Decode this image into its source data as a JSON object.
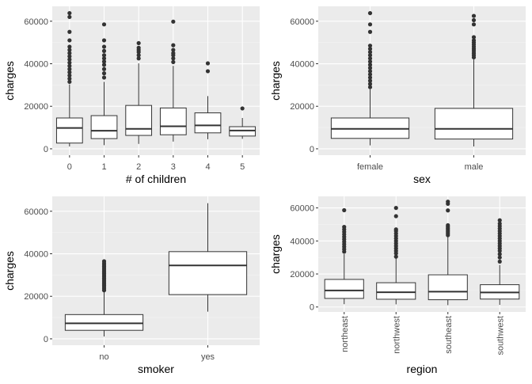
{
  "colors": {
    "panel_bg": "#EBEBEB",
    "grid_major": "#FFFFFF",
    "grid_minor": "#F4F4F4",
    "box_fill": "#FFFFFF",
    "box_stroke": "#333333",
    "outlier": "#333333",
    "tick_text": "#4D4D4D",
    "axis_title": "#000000"
  },
  "chart_data": [
    {
      "type": "boxplot",
      "xlabel": "# of children",
      "ylabel": "charges",
      "ylim": [
        -3000,
        67000
      ],
      "yticks": [
        0,
        20000,
        40000,
        60000
      ],
      "ytick_labels": [
        "0",
        "20000",
        "40000",
        "60000"
      ],
      "grid": true,
      "categories": [
        "0",
        "1",
        "2",
        "3",
        "4",
        "5"
      ],
      "boxes": [
        {
          "low": 1100,
          "q1": 2700,
          "median": 9800,
          "q3": 14500,
          "high": 30300,
          "outliers": [
            31500,
            33000,
            34500,
            36000,
            37500,
            39000,
            40500,
            42000,
            43500,
            45000,
            46500,
            48000,
            51000,
            55000,
            62000,
            63800
          ]
        },
        {
          "low": 1700,
          "q1": 4800,
          "median": 8500,
          "q3": 15600,
          "high": 31500,
          "outliers": [
            33500,
            35500,
            37500,
            39500,
            41000,
            42500,
            44000,
            46000,
            48000,
            51000,
            58500
          ]
        },
        {
          "low": 2300,
          "q1": 6300,
          "median": 9400,
          "q3": 20400,
          "high": 40200,
          "outliers": [
            42500,
            44000,
            45500,
            46500,
            47500,
            49700
          ]
        },
        {
          "low": 3400,
          "q1": 6600,
          "median": 10600,
          "q3": 19200,
          "high": 39000,
          "outliers": [
            40800,
            42500,
            44000,
            45000,
            46500,
            48700,
            59800
          ]
        },
        {
          "low": 4500,
          "q1": 7500,
          "median": 11000,
          "q3": 16900,
          "high": 24800,
          "outliers": [
            36500,
            40200
          ]
        },
        {
          "low": 4700,
          "q1": 6000,
          "median": 8600,
          "q3": 10400,
          "high": 14500,
          "outliers": [
            19000
          ]
        }
      ]
    },
    {
      "type": "boxplot",
      "xlabel": "sex",
      "ylabel": "charges",
      "ylim": [
        -3000,
        67000
      ],
      "yticks": [
        0,
        20000,
        40000,
        60000
      ],
      "ytick_labels": [
        "0",
        "20000",
        "40000",
        "60000"
      ],
      "grid": true,
      "categories": [
        "female",
        "male"
      ],
      "boxes": [
        {
          "low": 1600,
          "q1": 4900,
          "median": 9400,
          "q3": 14500,
          "high": 28000,
          "outliers": [
            29000,
            30500,
            32000,
            33500,
            35000,
            36500,
            38000,
            39500,
            41000,
            42500,
            44000,
            45500,
            47000,
            48500,
            55000,
            58500,
            63800
          ]
        },
        {
          "low": 1100,
          "q1": 4600,
          "median": 9400,
          "q3": 19000,
          "high": 42000,
          "outliers": [
            43000,
            44000,
            45000,
            46000,
            47000,
            48000,
            49000,
            50000,
            51000,
            52500,
            58500,
            60500,
            62500
          ]
        }
      ]
    },
    {
      "type": "boxplot",
      "xlabel": "smoker",
      "ylabel": "charges",
      "ylim": [
        -3000,
        67000
      ],
      "yticks": [
        0,
        20000,
        40000,
        60000
      ],
      "ytick_labels": [
        "0",
        "20000",
        "40000",
        "60000"
      ],
      "grid": true,
      "categories": [
        "no",
        "yes"
      ],
      "boxes": [
        {
          "low": 1100,
          "q1": 4000,
          "median": 7300,
          "q3": 11400,
          "high": 22000,
          "outliers": [
            22800,
            23600,
            24400,
            25200,
            26000,
            26800,
            27600,
            28400,
            29200,
            30000,
            30800,
            31600,
            32400,
            33200,
            34000,
            34800,
            35600,
            36500
          ]
        },
        {
          "low": 12800,
          "q1": 20800,
          "median": 34500,
          "q3": 41000,
          "high": 63800,
          "outliers": []
        }
      ]
    },
    {
      "type": "boxplot",
      "xlabel": "region",
      "ylabel": "charges",
      "ylim": [
        -3000,
        67000
      ],
      "yticks": [
        0,
        20000,
        40000,
        60000
      ],
      "ytick_labels": [
        "0",
        "20000",
        "40000",
        "60000"
      ],
      "grid": true,
      "categories": [
        "northeast",
        "northwest",
        "southeast",
        "southwest"
      ],
      "boxes": [
        {
          "low": 1700,
          "q1": 5200,
          "median": 10000,
          "q3": 16700,
          "high": 32000,
          "outliers": [
            33500,
            35000,
            36500,
            38000,
            39500,
            41000,
            42500,
            44000,
            45500,
            47000,
            48500,
            58600
          ]
        },
        {
          "low": 1600,
          "q1": 4700,
          "median": 8900,
          "q3": 14700,
          "high": 29500,
          "outliers": [
            30500,
            32500,
            34000,
            35500,
            37000,
            38500,
            40000,
            41500,
            43000,
            44500,
            46000,
            47000,
            55000,
            60000
          ]
        },
        {
          "low": 1100,
          "q1": 4400,
          "median": 9300,
          "q3": 19500,
          "high": 42500,
          "outliers": [
            43500,
            44500,
            45500,
            46500,
            47500,
            48500,
            49500,
            58500,
            62500,
            63800
          ]
        },
        {
          "low": 1300,
          "q1": 4800,
          "median": 8800,
          "q3": 13500,
          "high": 25500,
          "outliers": [
            27500,
            30000,
            32000,
            34000,
            35500,
            37000,
            38500,
            40000,
            41500,
            43000,
            44500,
            46000,
            47500,
            49000,
            50500,
            52500
          ]
        }
      ]
    }
  ]
}
